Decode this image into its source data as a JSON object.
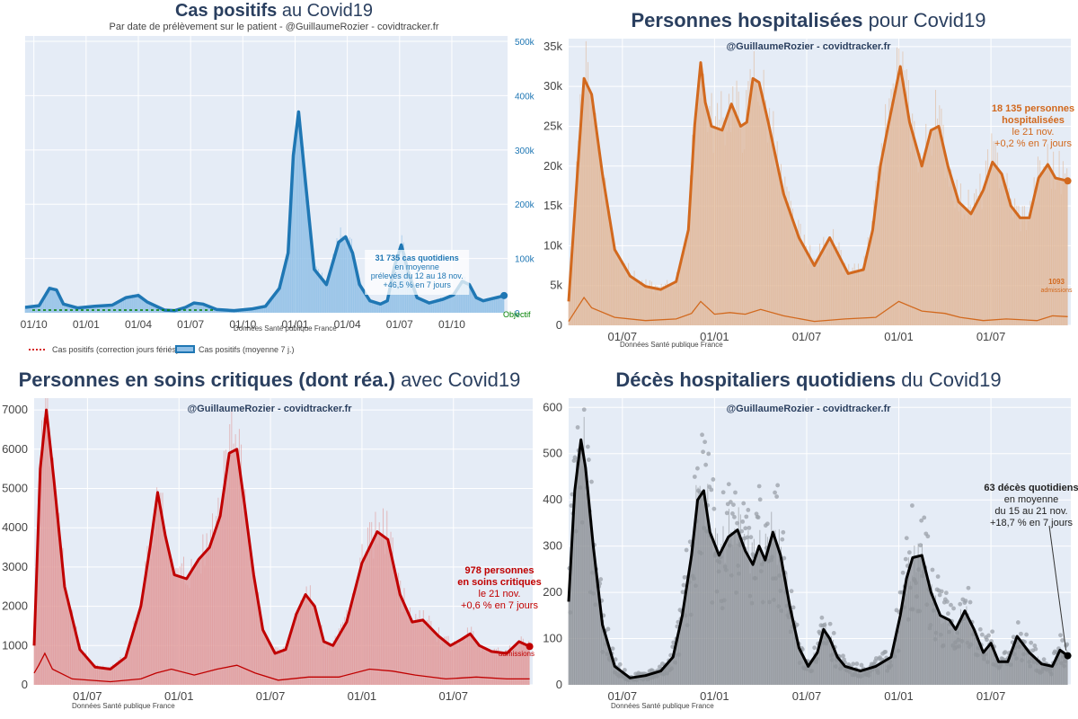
{
  "colors": {
    "cases": "#1f77b4",
    "cases_fill": "#8fbfe6",
    "hosp": "#d2691e",
    "hosp_fill": "#e0b798",
    "crit": "#c00000",
    "crit_fill": "#e09898",
    "deaths": "#000000",
    "deaths_fill": "#8e9297",
    "dots": "#9aa0a8",
    "plot_bg": "#e5ecf6",
    "title": "#2a3f5f",
    "objective": "#008000"
  },
  "chart_data": [
    {
      "type": "area",
      "title_bold": "Cas positifs",
      "title_rest": " au Covid19",
      "subtitle": "Par date de prélèvement sur le patient - @GuillaumeRozier - covidtracker.fr",
      "source": "Données Santé publique France",
      "x_ticks": [
        "01/10",
        "01/01",
        "01/04",
        "01/07",
        "01/10",
        "01/01",
        "01/04",
        "01/07",
        "01/10"
      ],
      "x_ticks_pos": [
        0.5,
        3.5,
        6.5,
        9.5,
        12.5,
        15.5,
        18.5,
        21.5,
        24.5
      ],
      "x_range": [
        0,
        27.7
      ],
      "y_axis_side": "right",
      "y_ticks": [
        "0",
        "100k",
        "200k",
        "300k",
        "400k",
        "500k"
      ],
      "y_range": [
        0,
        510000
      ],
      "objective_label": "Objectif",
      "objective_value": 5000,
      "series": [
        {
          "name": "Cas positifs (moyenne 7 j.)",
          "x": [
            0,
            0.8,
            1.4,
            1.8,
            2.2,
            3.0,
            4.0,
            5.0,
            5.8,
            6.5,
            7.0,
            8.0,
            8.6,
            9.2,
            9.7,
            10.2,
            11.0,
            12.0,
            13.0,
            13.8,
            14.6,
            15.1,
            15.4,
            15.7,
            16.1,
            16.6,
            17.3,
            18.0,
            18.4,
            18.8,
            19.2,
            19.8,
            20.4,
            20.8,
            21.2,
            21.6,
            22.0,
            22.5,
            23.2,
            24.0,
            24.6,
            25.1,
            25.5,
            25.9,
            26.3,
            26.8,
            27.2,
            27.5
          ],
          "values": [
            10000,
            13000,
            45000,
            42000,
            16000,
            9000,
            12000,
            14000,
            28000,
            32000,
            20000,
            5000,
            4000,
            10000,
            18000,
            16000,
            6000,
            4000,
            7000,
            12000,
            45000,
            110000,
            290000,
            370000,
            240000,
            80000,
            52000,
            130000,
            140000,
            110000,
            52000,
            22000,
            16000,
            22000,
            85000,
            125000,
            75000,
            28000,
            18000,
            25000,
            33000,
            58000,
            52000,
            28000,
            22000,
            26000,
            29000,
            31735
          ]
        }
      ],
      "legend": [
        "Cas positifs (correction jours fériés)",
        "Cas positifs (moyenne 7 j.)"
      ],
      "annotation_lines": [
        "31 735 cas quotidiens",
        "en moyenne",
        "prélevés du 12 au 18 nov.",
        "+46,5 % en 7 jours"
      ]
    },
    {
      "type": "area",
      "title_bold": "Personnes hospitalisées",
      "title_rest": " pour Covid19",
      "subtitle": "@GuillaumeRozier - covidtracker.fr",
      "source": "Données Santé publique France",
      "x_ticks": [
        "01/07",
        "01/01",
        "01/07",
        "01/01",
        "01/07"
      ],
      "x_ticks_pos": [
        3.5,
        9.5,
        15.5,
        21.5,
        27.5
      ],
      "x_range": [
        0,
        32.7
      ],
      "y_axis_side": "left",
      "y_ticks": [
        "0",
        "5k",
        "10k",
        "15k",
        "20k",
        "25k",
        "30k",
        "35k"
      ],
      "y_range": [
        0,
        36000
      ],
      "series": [
        {
          "name": "hospitalisés",
          "x": [
            0,
            0.6,
            1.0,
            1.5,
            2.2,
            3.0,
            4.0,
            5.0,
            6.0,
            7.0,
            7.8,
            8.2,
            8.6,
            8.9,
            9.3,
            10.0,
            10.6,
            11.2,
            11.6,
            12.0,
            12.4,
            13.0,
            14.0,
            15.0,
            16.0,
            17.0,
            18.2,
            19.2,
            19.8,
            20.3,
            20.8,
            21.6,
            22.2,
            23.0,
            23.6,
            24.1,
            24.7,
            25.4,
            26.2,
            27.0,
            27.6,
            28.2,
            28.8,
            29.4,
            30.0,
            30.6,
            31.2,
            31.7,
            32.5
          ],
          "values": [
            3000,
            20000,
            31000,
            29000,
            19000,
            9500,
            6200,
            4900,
            4500,
            5500,
            12000,
            25000,
            33000,
            28000,
            25000,
            24500,
            27800,
            25000,
            25500,
            31000,
            30500,
            25500,
            16500,
            11000,
            7500,
            11000,
            6500,
            7000,
            12000,
            20000,
            25000,
            32500,
            25500,
            20000,
            24500,
            25000,
            20000,
            15500,
            14000,
            17000,
            20500,
            19000,
            15000,
            13500,
            13500,
            18500,
            20200,
            18500,
            18135
          ]
        },
        {
          "name": "admissions",
          "x": [
            0,
            0.5,
            1.0,
            1.5,
            3.0,
            5.0,
            7.0,
            8.0,
            8.6,
            9.5,
            10.5,
            11.5,
            12.5,
            14.0,
            16.0,
            18.0,
            20.0,
            21.5,
            23.0,
            24.5,
            25.5,
            27.0,
            28.5,
            30.5,
            31.5,
            32.5
          ],
          "values": [
            500,
            2000,
            3500,
            2200,
            1000,
            600,
            800,
            1500,
            3000,
            1400,
            1600,
            1400,
            2000,
            1200,
            500,
            800,
            1000,
            3000,
            1800,
            1500,
            1000,
            600,
            800,
            600,
            1200,
            1093
          ]
        }
      ],
      "annotation_lines": [
        "18 135 personnes",
        "hospitalisées",
        "le 21 nov.",
        "+0,2 % en 7 jours"
      ],
      "annotation_bold_count": 2,
      "admissions_lines": [
        "1093",
        "admissions"
      ]
    },
    {
      "type": "area",
      "title_bold": "Personnes en soins critiques (dont réa.)",
      "title_rest": " avec Covid19",
      "subtitle": "@GuillaumeRozier - covidtracker.fr",
      "source": "Données Santé publique France",
      "x_ticks": [
        "01/07",
        "01/01",
        "01/07",
        "01/01",
        "01/07"
      ],
      "x_ticks_pos": [
        3.5,
        9.5,
        15.5,
        21.5,
        27.5
      ],
      "x_range": [
        0,
        32.7
      ],
      "y_axis_side": "left",
      "y_ticks": [
        "0",
        "1000",
        "2000",
        "3000",
        "4000",
        "5000",
        "6000",
        "7000"
      ],
      "y_range": [
        0,
        7300
      ],
      "series": [
        {
          "name": "soins critiques",
          "x": [
            0,
            0.4,
            0.8,
            1.3,
            2.0,
            3.0,
            4.0,
            5.0,
            6.0,
            7.0,
            7.6,
            8.1,
            8.6,
            9.2,
            10.0,
            10.8,
            11.5,
            12.2,
            12.8,
            13.3,
            13.8,
            14.4,
            15.0,
            15.8,
            16.5,
            17.2,
            17.8,
            18.4,
            19.0,
            19.6,
            20.5,
            21.5,
            22.5,
            23.2,
            24.0,
            24.8,
            25.5,
            26.5,
            27.3,
            28.0,
            28.6,
            29.2,
            30.0,
            31.0,
            31.8,
            32.5
          ],
          "values": [
            1000,
            5500,
            7000,
            5200,
            2500,
            900,
            450,
            400,
            700,
            2000,
            3500,
            4900,
            3800,
            2800,
            2700,
            3200,
            3500,
            4300,
            5900,
            6000,
            4600,
            2800,
            1400,
            800,
            900,
            1800,
            2300,
            2000,
            1100,
            1000,
            1600,
            3100,
            3900,
            3700,
            2300,
            1600,
            1650,
            1250,
            1000,
            1150,
            1300,
            1000,
            850,
            800,
            1100,
            978
          ]
        },
        {
          "name": "admissions",
          "x": [
            0,
            0.3,
            0.7,
            1.2,
            2.5,
            5.0,
            7.0,
            8.0,
            9.0,
            10.5,
            12.0,
            13.3,
            14.5,
            16.0,
            18.0,
            20.0,
            22.0,
            23.5,
            25.0,
            27.0,
            29.0,
            31.0,
            32.5
          ],
          "values": [
            300,
            500,
            800,
            400,
            150,
            80,
            150,
            300,
            400,
            250,
            400,
            500,
            300,
            120,
            200,
            200,
            400,
            350,
            250,
            150,
            200,
            150,
            150
          ]
        }
      ],
      "annotation_lines": [
        "978 personnes",
        "en soins critiques",
        "le 21 nov.",
        "+0,6 % en 7 jours"
      ],
      "annotation_bold_count": 2,
      "admissions_label": "admissions"
    },
    {
      "type": "area",
      "title_bold": "Décès hospitaliers quotidiens",
      "title_rest": " du Covid19",
      "subtitle": "@GuillaumeRozier - covidtracker.fr",
      "source": "Données Santé publique France",
      "x_ticks": [
        "01/07",
        "01/01",
        "01/07",
        "01/01",
        "01/07"
      ],
      "x_ticks_pos": [
        3.5,
        9.5,
        15.5,
        21.5,
        27.5
      ],
      "x_range": [
        0,
        32.7
      ],
      "y_axis_side": "left",
      "y_ticks": [
        "0",
        "100",
        "200",
        "300",
        "400",
        "500",
        "600"
      ],
      "y_range": [
        0,
        620
      ],
      "series": [
        {
          "name": "décès (moyenne 7 j.)",
          "x": [
            0,
            0.4,
            0.8,
            1.1,
            1.6,
            2.2,
            3.0,
            4.0,
            5.0,
            6.0,
            6.8,
            7.4,
            8.0,
            8.4,
            8.8,
            9.2,
            9.8,
            10.4,
            11.0,
            11.5,
            12.0,
            12.4,
            12.8,
            13.3,
            13.8,
            14.4,
            15.0,
            15.6,
            16.2,
            16.6,
            17.0,
            17.5,
            18.0,
            19.0,
            20.0,
            21.0,
            21.6,
            22.0,
            22.4,
            23.0,
            23.6,
            24.2,
            24.8,
            25.2,
            25.8,
            26.4,
            27.0,
            27.5,
            28.0,
            28.6,
            29.2,
            30.0,
            30.8,
            31.5,
            32.0,
            32.5
          ],
          "values": [
            180,
            420,
            530,
            470,
            300,
            130,
            40,
            15,
            20,
            30,
            60,
            150,
            280,
            400,
            420,
            330,
            280,
            320,
            335,
            290,
            260,
            300,
            270,
            330,
            280,
            170,
            80,
            40,
            70,
            120,
            100,
            60,
            40,
            30,
            40,
            60,
            150,
            230,
            275,
            280,
            200,
            150,
            140,
            120,
            160,
            120,
            70,
            90,
            50,
            50,
            105,
            70,
            45,
            40,
            75,
            63
          ]
        }
      ],
      "annotation_lines": [
        "63 décès quotidiens",
        "en moyenne",
        "du 15 au 21 nov.",
        "+18,7 % en 7 jours"
      ],
      "annotation_bold_count": 1
    }
  ]
}
